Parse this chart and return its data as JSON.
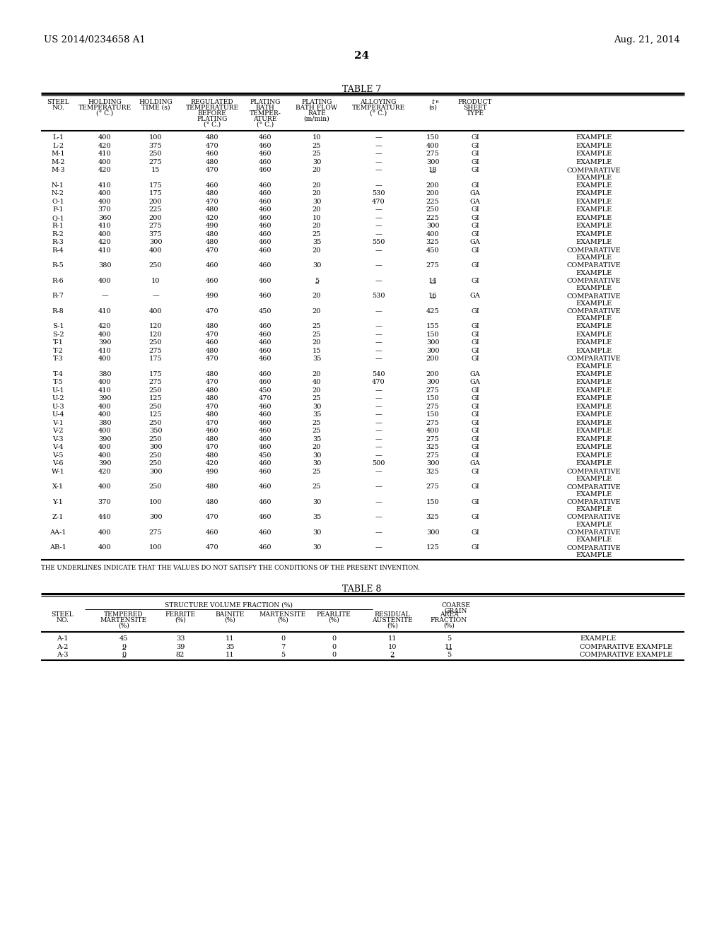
{
  "header_left": "US 2014/0234658 A1",
  "header_right": "Aug. 21, 2014",
  "page_number": "24",
  "table7_title": "TABLE 7",
  "table8_title": "TABLE 8",
  "underline_note": "THE UNDERLINES INDICATE THAT THE VALUES DO NOT SATISFY THE CONDITIONS OF THE PRESENT INVENTION.",
  "table7_rows": [
    [
      "L-1",
      "400",
      "100",
      "480",
      "460",
      "10",
      "—",
      "150",
      "GI",
      "EXAMPLE",
      false,
      false,
      false
    ],
    [
      "L-2",
      "420",
      "375",
      "470",
      "460",
      "25",
      "—",
      "400",
      "GI",
      "EXAMPLE",
      false,
      false,
      false
    ],
    [
      "M-1",
      "410",
      "250",
      "460",
      "460",
      "25",
      "—",
      "275",
      "GI",
      "EXAMPLE",
      false,
      false,
      false
    ],
    [
      "M-2",
      "400",
      "275",
      "480",
      "460",
      "30",
      "—",
      "300",
      "GI",
      "EXAMPLE",
      false,
      false,
      false
    ],
    [
      "M-3",
      "420",
      "15",
      "470",
      "460",
      "20",
      "—",
      "18",
      "GI",
      "COMPARATIVE\nEXAMPLE",
      false,
      false,
      true
    ],
    [
      "N-1",
      "410",
      "175",
      "460",
      "460",
      "20",
      "—",
      "200",
      "GI",
      "EXAMPLE",
      false,
      false,
      false
    ],
    [
      "N-2",
      "400",
      "175",
      "480",
      "460",
      "20",
      "530",
      "200",
      "GA",
      "EXAMPLE",
      false,
      false,
      false
    ],
    [
      "O-1",
      "400",
      "200",
      "470",
      "460",
      "30",
      "470",
      "225",
      "GA",
      "EXAMPLE",
      false,
      false,
      false
    ],
    [
      "P-1",
      "370",
      "225",
      "480",
      "460",
      "20",
      "—",
      "250",
      "GI",
      "EXAMPLE",
      false,
      false,
      false
    ],
    [
      "Q-1",
      "360",
      "200",
      "420",
      "460",
      "10",
      "—",
      "225",
      "GI",
      "EXAMPLE",
      false,
      false,
      false
    ],
    [
      "R-1",
      "410",
      "275",
      "490",
      "460",
      "20",
      "—",
      "300",
      "GI",
      "EXAMPLE",
      false,
      false,
      false
    ],
    [
      "R-2",
      "400",
      "375",
      "480",
      "460",
      "25",
      "—",
      "400",
      "GI",
      "EXAMPLE",
      false,
      false,
      false
    ],
    [
      "R-3",
      "420",
      "300",
      "480",
      "460",
      "35",
      "550",
      "325",
      "GA",
      "EXAMPLE",
      false,
      false,
      false
    ],
    [
      "R-4",
      "410",
      "400",
      "470",
      "460",
      "20",
      "—",
      "450",
      "GI",
      "COMPARATIVE\nEXAMPLE",
      false,
      false,
      false
    ],
    [
      "R-5",
      "380",
      "250",
      "460",
      "460",
      "30",
      "—",
      "275",
      "GI",
      "COMPARATIVE\nEXAMPLE",
      false,
      false,
      false
    ],
    [
      "R-6",
      "400",
      "10",
      "460",
      "460",
      "5",
      "—",
      "14",
      "GI",
      "COMPARATIVE\nEXAMPLE",
      false,
      true,
      true
    ],
    [
      "R-7",
      "—",
      "—",
      "490",
      "460",
      "20",
      "530",
      "16",
      "GA",
      "COMPARATIVE\nEXAMPLE",
      false,
      false,
      true
    ],
    [
      "R-8",
      "410",
      "400",
      "470",
      "450",
      "20",
      "—",
      "425",
      "GI",
      "COMPARATIVE\nEXAMPLE",
      false,
      false,
      false
    ],
    [
      "S-1",
      "420",
      "120",
      "480",
      "460",
      "25",
      "—",
      "155",
      "GI",
      "EXAMPLE",
      false,
      false,
      false
    ],
    [
      "S-2",
      "400",
      "120",
      "470",
      "460",
      "25",
      "—",
      "150",
      "GI",
      "EXAMPLE",
      false,
      false,
      false
    ],
    [
      "T-1",
      "390",
      "250",
      "460",
      "460",
      "20",
      "—",
      "300",
      "GI",
      "EXAMPLE",
      false,
      false,
      false
    ],
    [
      "T-2",
      "410",
      "275",
      "480",
      "460",
      "15",
      "—",
      "300",
      "GI",
      "EXAMPLE",
      false,
      false,
      false
    ],
    [
      "T-3",
      "400",
      "175",
      "470",
      "460",
      "35",
      "—",
      "200",
      "GI",
      "COMPARATIVE\nEXAMPLE",
      false,
      false,
      false
    ],
    [
      "T-4",
      "380",
      "175",
      "480",
      "460",
      "20",
      "540",
      "200",
      "GA",
      "EXAMPLE",
      false,
      false,
      false
    ],
    [
      "T-5",
      "400",
      "275",
      "470",
      "460",
      "40",
      "470",
      "300",
      "GA",
      "EXAMPLE",
      false,
      false,
      false
    ],
    [
      "U-1",
      "410",
      "250",
      "480",
      "450",
      "20",
      "—",
      "275",
      "GI",
      "EXAMPLE",
      false,
      false,
      false
    ],
    [
      "U-2",
      "390",
      "125",
      "480",
      "470",
      "25",
      "—",
      "150",
      "GI",
      "EXAMPLE",
      false,
      false,
      false
    ],
    [
      "U-3",
      "400",
      "250",
      "470",
      "460",
      "30",
      "—",
      "275",
      "GI",
      "EXAMPLE",
      false,
      false,
      false
    ],
    [
      "U-4",
      "400",
      "125",
      "480",
      "460",
      "35",
      "—",
      "150",
      "GI",
      "EXAMPLE",
      false,
      false,
      false
    ],
    [
      "V-1",
      "380",
      "250",
      "470",
      "460",
      "25",
      "—",
      "275",
      "GI",
      "EXAMPLE",
      false,
      false,
      false
    ],
    [
      "V-2",
      "400",
      "350",
      "460",
      "460",
      "25",
      "—",
      "400",
      "GI",
      "EXAMPLE",
      false,
      false,
      false
    ],
    [
      "V-3",
      "390",
      "250",
      "480",
      "460",
      "35",
      "—",
      "275",
      "GI",
      "EXAMPLE",
      false,
      false,
      false
    ],
    [
      "V-4",
      "400",
      "300",
      "470",
      "460",
      "20",
      "—",
      "325",
      "GI",
      "EXAMPLE",
      false,
      false,
      false
    ],
    [
      "V-5",
      "400",
      "250",
      "480",
      "450",
      "30",
      "—",
      "275",
      "GI",
      "EXAMPLE",
      false,
      false,
      false
    ],
    [
      "V-6",
      "390",
      "250",
      "420",
      "460",
      "30",
      "500",
      "300",
      "GA",
      "EXAMPLE",
      false,
      false,
      false
    ],
    [
      "W-1",
      "420",
      "300",
      "490",
      "460",
      "25",
      "—",
      "325",
      "GI",
      "COMPARATIVE\nEXAMPLE",
      false,
      false,
      false
    ],
    [
      "X-1",
      "400",
      "250",
      "480",
      "460",
      "25",
      "—",
      "275",
      "GI",
      "COMPARATIVE\nEXAMPLE",
      false,
      false,
      false
    ],
    [
      "Y-1",
      "370",
      "100",
      "480",
      "460",
      "30",
      "—",
      "150",
      "GI",
      "COMPARATIVE\nEXAMPLE",
      false,
      false,
      false
    ],
    [
      "Z-1",
      "440",
      "300",
      "470",
      "460",
      "35",
      "—",
      "325",
      "GI",
      "COMPARATIVE\nEXAMPLE",
      false,
      false,
      false
    ],
    [
      "AA-1",
      "400",
      "275",
      "460",
      "460",
      "30",
      "—",
      "300",
      "GI",
      "COMPARATIVE\nEXAMPLE",
      false,
      false,
      false
    ],
    [
      "AB-1",
      "400",
      "100",
      "470",
      "460",
      "30",
      "—",
      "125",
      "GI",
      "COMPARATIVE\nEXAMPLE",
      false,
      false,
      false
    ]
  ],
  "table8_rows": [
    [
      "A-1",
      "45",
      "33",
      "11",
      "0",
      "0",
      "11",
      "5",
      "EXAMPLE",
      false,
      false,
      false
    ],
    [
      "A-2",
      "9",
      "39",
      "35",
      "7",
      "0",
      "10",
      "11",
      "COMPARATIVE EXAMPLE",
      true,
      false,
      true
    ],
    [
      "A-3",
      "0",
      "82",
      "11",
      "5",
      "0",
      "2",
      "5",
      "COMPARATIVE EXAMPLE",
      true,
      true,
      false
    ]
  ],
  "bg_color": "#ffffff",
  "text_color": "#000000"
}
